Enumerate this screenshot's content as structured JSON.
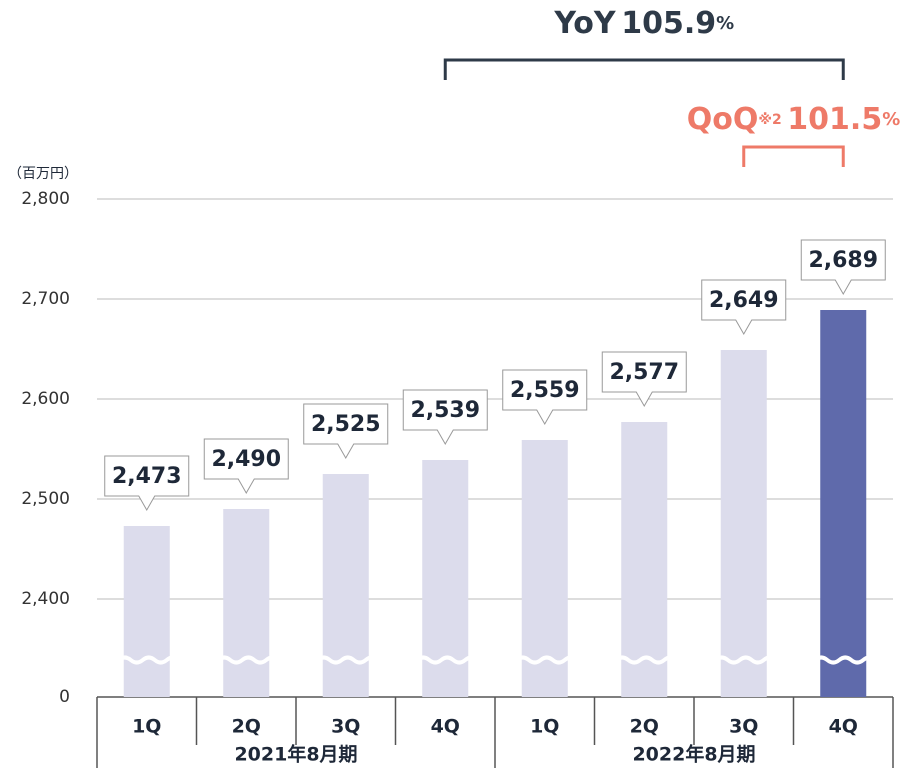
{
  "chart_data": {
    "type": "bar",
    "unit_label": "（百万円）",
    "categories": [
      "1Q",
      "2Q",
      "3Q",
      "4Q",
      "1Q",
      "2Q",
      "3Q",
      "4Q"
    ],
    "groups": [
      "2021年8月期",
      "2022年8月期"
    ],
    "values": [
      2473,
      2490,
      2525,
      2539,
      2559,
      2577,
      2649,
      2689
    ],
    "value_labels": [
      "2,473",
      "2,490",
      "2,525",
      "2,539",
      "2,559",
      "2,577",
      "2,649",
      "2,689"
    ],
    "colors": [
      "#dcdcec",
      "#dcdcec",
      "#dcdcec",
      "#dcdcec",
      "#dcdcec",
      "#dcdcec",
      "#dcdcec",
      "#5f6aab"
    ],
    "ylim": [
      2400,
      2800
    ],
    "yticks": [
      {
        "value": 2800,
        "label": "2,800"
      },
      {
        "value": 2700,
        "label": "2,700"
      },
      {
        "value": 2600,
        "label": "2,600"
      },
      {
        "value": 2500,
        "label": "2,500"
      },
      {
        "value": 2400,
        "label": "2,400"
      },
      0
    ],
    "broken_axis": true,
    "grid": true,
    "annotations": [
      {
        "label": "YoY",
        "value": 105.9,
        "unit": "%",
        "color": "#2e3a48"
      },
      {
        "label": "QoQ",
        "note": "※2",
        "value": 101.5,
        "unit": "%",
        "color": "#ee7a68"
      }
    ]
  }
}
